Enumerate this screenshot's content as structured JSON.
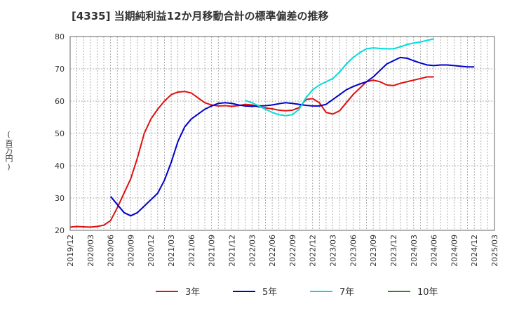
{
  "chart_data": {
    "type": "line",
    "title": "[4335]  当期純利益12か月移動合計の標準偏差の推移",
    "ylabel": "(百万円)",
    "xlabel": "",
    "ylim": [
      20,
      80
    ],
    "yticks": [
      20,
      30,
      40,
      50,
      60,
      70,
      80
    ],
    "x_tick_labels": [
      "2019/12",
      "2020/03",
      "2020/06",
      "2020/09",
      "2020/12",
      "2021/03",
      "2021/06",
      "2021/09",
      "2021/12",
      "2022/03",
      "2022/06",
      "2022/09",
      "2022/12",
      "2023/03",
      "2023/06",
      "2023/09",
      "2023/12",
      "2024/03",
      "2024/06",
      "2024/09",
      "2024/12",
      "2025/03"
    ],
    "grid": true,
    "legend_position": "bottom",
    "series": [
      {
        "name": "3年",
        "color": "#dd1111",
        "start_index": 0,
        "values": [
          21.0,
          21.2,
          21.1,
          21.0,
          21.2,
          21.6,
          23.0,
          27.0,
          31.5,
          36.0,
          42.5,
          50.0,
          54.5,
          57.5,
          60.0,
          62.0,
          62.8,
          63.0,
          62.5,
          61.0,
          59.5,
          58.8,
          58.5,
          58.6,
          58.4,
          58.6,
          59.0,
          58.8,
          58.2,
          57.9,
          57.6,
          57.2,
          57.0,
          57.2,
          58.0,
          60.5,
          60.8,
          59.5,
          56.5,
          56.0,
          57.0,
          59.5,
          62.0,
          64.0,
          66.0,
          66.5,
          66.0,
          65.0,
          64.8,
          65.5,
          66.0,
          66.5,
          67.0,
          67.5,
          67.5
        ]
      },
      {
        "name": "5年",
        "color": "#0000cc",
        "start_index": 6,
        "values": [
          30.5,
          28.0,
          25.5,
          24.5,
          25.5,
          27.5,
          29.5,
          31.5,
          35.5,
          41.0,
          47.5,
          52.0,
          54.5,
          56.0,
          57.5,
          58.5,
          59.3,
          59.5,
          59.3,
          58.8,
          58.5,
          58.4,
          58.5,
          58.6,
          58.8,
          59.2,
          59.5,
          59.3,
          59.0,
          58.7,
          58.5,
          58.5,
          59.0,
          60.5,
          62.0,
          63.5,
          64.5,
          65.3,
          66.0,
          67.5,
          69.5,
          71.5,
          72.5,
          73.5,
          73.3,
          72.5,
          71.8,
          71.2,
          71.0,
          71.2,
          71.2,
          71.0,
          70.8,
          70.6,
          70.6
        ]
      },
      {
        "name": "7年",
        "color": "#00dddd",
        "start_index": 26,
        "values": [
          60.2,
          59.5,
          58.5,
          57.5,
          56.5,
          55.8,
          55.5,
          55.8,
          57.5,
          61.0,
          63.5,
          65.0,
          66.0,
          67.0,
          69.0,
          71.5,
          73.5,
          75.0,
          76.2,
          76.5,
          76.3,
          76.2,
          76.2,
          76.8,
          77.5,
          78.0,
          78.3,
          78.8,
          79.3
        ]
      },
      {
        "name": "10年",
        "color": "#228b22",
        "start_index": 0,
        "values": []
      }
    ]
  }
}
